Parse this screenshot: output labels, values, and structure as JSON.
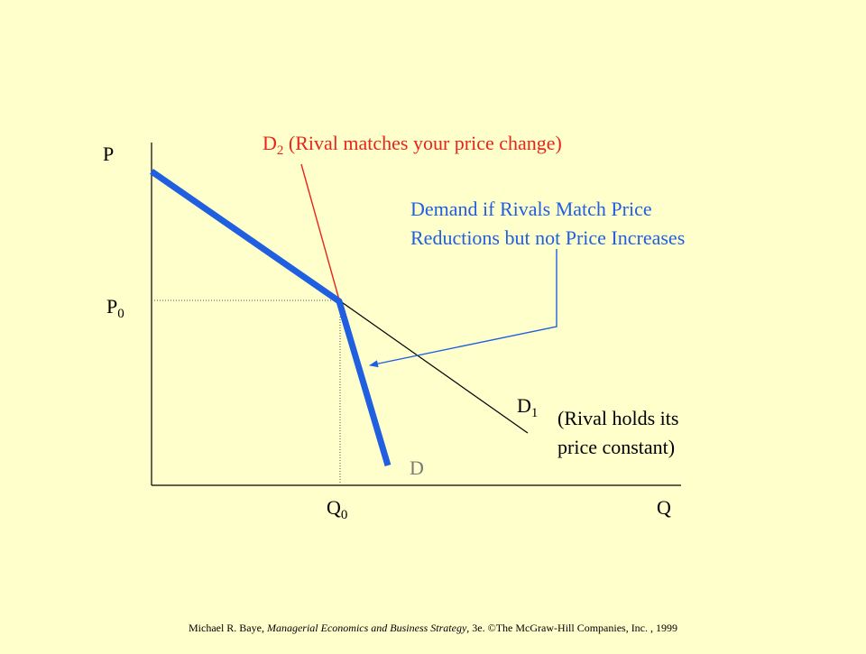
{
  "axes": {
    "y_label": "P",
    "x_label": "Q",
    "p0_main": "P",
    "p0_sub": "0",
    "q0_main": "Q",
    "q0_sub": "0"
  },
  "curves": {
    "d2_main": "D",
    "d2_sub": "2",
    "d2_desc": " (Rival matches your price change)",
    "d1_main": "D",
    "d1_sub": "1",
    "d1_desc_line1": "(Rival holds its",
    "d1_desc_line2": "price constant)",
    "kinked_label": "D"
  },
  "annotation": {
    "line1": "Demand if Rivals Match Price",
    "line2": "Reductions but not Price Increases"
  },
  "footer": {
    "author": "Michael R. Baye, ",
    "title": "Managerial Economics and Business Strategy",
    "rest": ", 3e. ©The McGraw-Hill Companies, Inc. , 1999"
  },
  "colors": {
    "background": "#FFFFCC",
    "d2_line": "#E8251B",
    "kinked_demand": "#1F5FE0",
    "annotation": "#1F5FE0",
    "axes": "#000000"
  }
}
